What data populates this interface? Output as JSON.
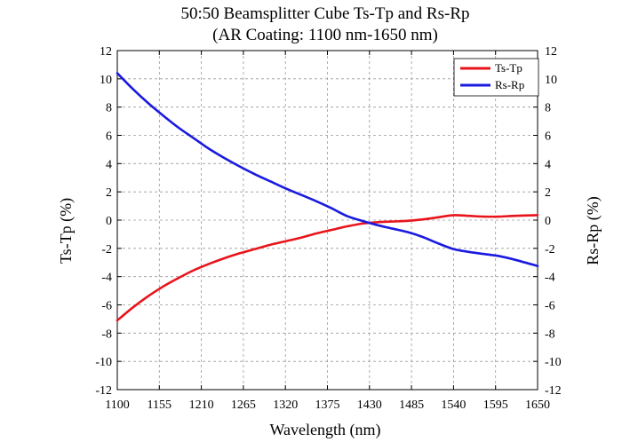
{
  "chart_data": {
    "type": "line",
    "title": "50:50 Beamsplitter Cube  Ts-Tp and Rs-Rp",
    "subtitle": "(AR Coating: 1100 nm-1650 nm)",
    "xlabel": "Wavelength (nm)",
    "ylabel_left": "Ts-Tp (%)",
    "ylabel_right": "Rs-Rp (%)",
    "xlim": [
      1100,
      1650
    ],
    "ylim": [
      -12,
      12
    ],
    "xticks": [
      1100,
      1155,
      1210,
      1265,
      1320,
      1375,
      1430,
      1485,
      1540,
      1595,
      1650
    ],
    "yticks": [
      -12,
      -10,
      -8,
      -6,
      -4,
      -2,
      0,
      2,
      4,
      6,
      8,
      10,
      12
    ],
    "grid": true,
    "legend_position": "top-right",
    "series": [
      {
        "name": "Ts-Tp",
        "color": "#e8141b",
        "axis": "left",
        "x": [
          1100,
          1120,
          1140,
          1160,
          1180,
          1200,
          1220,
          1240,
          1260,
          1280,
          1300,
          1320,
          1340,
          1360,
          1380,
          1400,
          1420,
          1440,
          1460,
          1480,
          1500,
          1520,
          1540,
          1560,
          1580,
          1600,
          1620,
          1650
        ],
        "y": [
          -7.1,
          -6.2,
          -5.4,
          -4.7,
          -4.1,
          -3.55,
          -3.1,
          -2.7,
          -2.35,
          -2.05,
          -1.75,
          -1.5,
          -1.25,
          -0.95,
          -0.7,
          -0.45,
          -0.25,
          -0.15,
          -0.1,
          -0.05,
          0.05,
          0.2,
          0.35,
          0.3,
          0.25,
          0.25,
          0.3,
          0.35
        ]
      },
      {
        "name": "Rs-Rp",
        "color": "#1a1ae0",
        "axis": "right",
        "x": [
          1100,
          1120,
          1140,
          1160,
          1180,
          1200,
          1220,
          1240,
          1260,
          1280,
          1300,
          1320,
          1340,
          1360,
          1380,
          1400,
          1420,
          1440,
          1460,
          1480,
          1500,
          1520,
          1540,
          1560,
          1580,
          1600,
          1620,
          1650
        ],
        "y": [
          10.4,
          9.3,
          8.3,
          7.4,
          6.55,
          5.8,
          5.05,
          4.4,
          3.8,
          3.25,
          2.75,
          2.25,
          1.8,
          1.35,
          0.85,
          0.3,
          -0.05,
          -0.35,
          -0.6,
          -0.85,
          -1.2,
          -1.65,
          -2.05,
          -2.25,
          -2.4,
          -2.55,
          -2.8,
          -3.25
        ]
      }
    ]
  }
}
